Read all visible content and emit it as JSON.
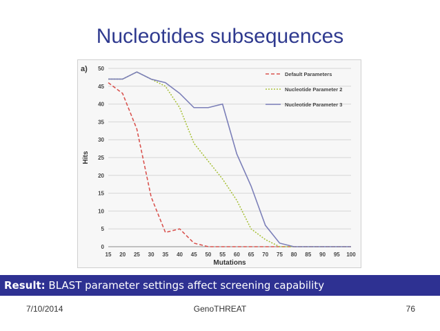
{
  "slide": {
    "title": "Nucleotides subsequences",
    "result_label": "Result:",
    "result_text": " BLAST parameter settings affect screening capability",
    "footer_date": "7/10/2014",
    "footer_center": "GenoTHREAT",
    "footer_page": "76"
  },
  "colors": {
    "title": "#2f3a8f",
    "result_bar": "#2e3192"
  },
  "chart_data": {
    "type": "line",
    "panel_label": "a)",
    "xlabel": "Mutations",
    "ylabel": "Hits",
    "x": [
      15,
      20,
      25,
      30,
      35,
      40,
      45,
      50,
      55,
      60,
      65,
      70,
      75,
      80,
      85,
      90,
      95,
      100
    ],
    "xlim": [
      15,
      100
    ],
    "ylim": [
      0,
      50
    ],
    "yticks": [
      0,
      5,
      10,
      15,
      20,
      25,
      30,
      35,
      40,
      45,
      50
    ],
    "grid": "horizontal",
    "legend_position": "top-right",
    "series": [
      {
        "name": "Default Parameters",
        "color": "#d9534f",
        "dash": "dashed",
        "values": [
          46,
          43,
          33,
          14,
          4,
          5,
          1,
          0,
          0,
          0,
          0,
          0,
          0,
          0,
          0,
          0,
          0,
          0
        ]
      },
      {
        "name": "Nucleotide Parameter 2",
        "color": "#a8c13a",
        "dash": "dotted",
        "values": [
          47,
          47,
          49,
          47,
          45,
          39,
          29,
          24,
          19,
          13,
          5,
          2,
          0,
          0,
          0,
          0,
          0,
          0
        ]
      },
      {
        "name": "Nucleotide Parameter 3",
        "color": "#7b7fb8",
        "dash": "solid",
        "values": [
          47,
          47,
          49,
          47,
          46,
          43,
          39,
          39,
          40,
          26,
          17,
          6,
          1,
          0,
          0,
          0,
          0,
          0
        ]
      }
    ]
  }
}
